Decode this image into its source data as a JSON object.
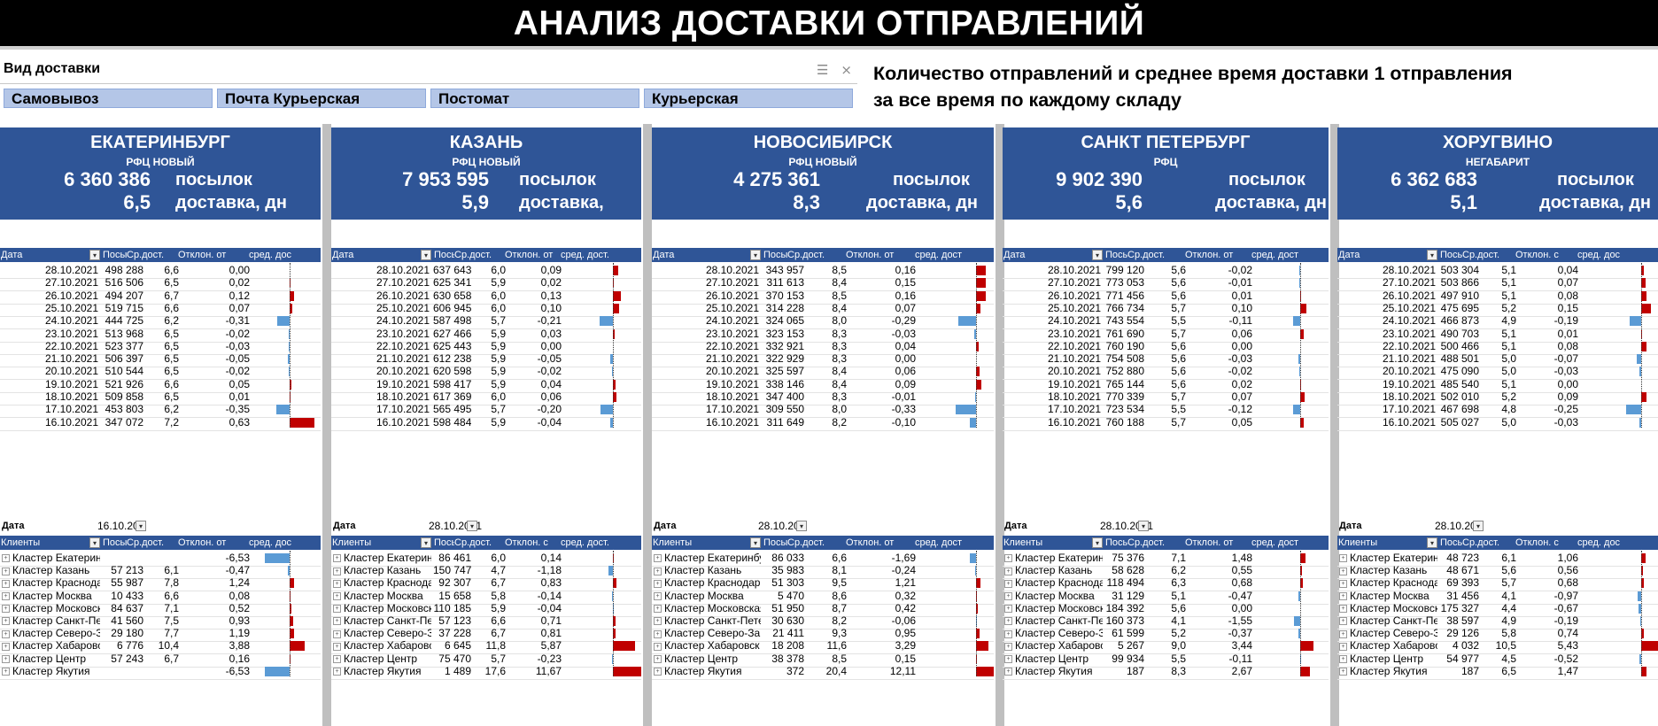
{
  "title": "АНАЛИЗ ДОСТАВКИ ОТПРАВЛЕНИЙ",
  "slicer": {
    "label": "Вид доставки",
    "buttons": [
      "Самовывоз",
      "Почта Курьерская",
      "Постомат",
      "Курьерская"
    ]
  },
  "note": {
    "line1": "Количество отправлений и  среднее время доставки 1 отправления",
    "line2": "за все время по каждому складу"
  },
  "colors": {
    "header_blue": "#2f5597",
    "bar_negative": "#5b9bd5",
    "bar_positive": "#c00000",
    "slicer_button": "#b4c6e7"
  },
  "panels": [
    {
      "city": "ЕКАТЕРИНБУРГ",
      "type": "РФЦ НОВЫЙ",
      "total": "6 360 386",
      "avg": "6,5",
      "lbl_parcels": "посылок",
      "lbl_delivery": "доставка, дн",
      "date_headers": [
        "Дата",
        "Посылки",
        "Ср.дост.",
        "Отклон. от",
        "сред. дос"
      ],
      "dates": [
        [
          "28.10.2021",
          "498 288",
          "6,6",
          "0,00"
        ],
        [
          "27.10.2021",
          "516 506",
          "6,5",
          "0,02"
        ],
        [
          "26.10.2021",
          "494 207",
          "6,7",
          "0,12"
        ],
        [
          "25.10.2021",
          "519 715",
          "6,6",
          "0,07"
        ],
        [
          "24.10.2021",
          "444 725",
          "6,2",
          "-0,31"
        ],
        [
          "23.10.2021",
          "513 968",
          "6,5",
          "-0,02"
        ],
        [
          "22.10.2021",
          "523 377",
          "6,5",
          "-0,03"
        ],
        [
          "21.10.2021",
          "506 397",
          "6,5",
          "-0,05"
        ],
        [
          "20.10.2021",
          "510 544",
          "6,5",
          "-0,02"
        ],
        [
          "19.10.2021",
          "521 926",
          "6,6",
          "0,05"
        ],
        [
          "18.10.2021",
          "509 858",
          "6,5",
          "0,01"
        ],
        [
          "17.10.2021",
          "453 803",
          "6,2",
          "-0,35"
        ],
        [
          "16.10.2021",
          "347 072",
          "7,2",
          "0,63"
        ]
      ],
      "filter_label": "Дата",
      "filter_value": "16.10.20",
      "client_headers": [
        "Клиенты",
        "Посылки",
        "Ср.дост.",
        "Отклон. от",
        "сред. дос"
      ],
      "clients": [
        [
          "Кластер Екатеринбург",
          "",
          "",
          "-6,53"
        ],
        [
          "Кластер Казань",
          "57 213",
          "6,1",
          "-0,47"
        ],
        [
          "Кластер Краснодар",
          "55 987",
          "7,8",
          "1,24"
        ],
        [
          "Кластер Москва",
          "10 433",
          "6,6",
          "0,08"
        ],
        [
          "Кластер Московска",
          "84 637",
          "7,1",
          "0,52"
        ],
        [
          "Кластер Санкт-Пете",
          "41 560",
          "7,5",
          "0,93"
        ],
        [
          "Кластер Северо-Зап",
          "29 180",
          "7,7",
          "1,19"
        ],
        [
          "Кластер Хабаровск",
          "6 776",
          "10,4",
          "3,88"
        ],
        [
          "Кластер Центр",
          "57 243",
          "6,7",
          "0,16"
        ],
        [
          "Кластер Якутия",
          "",
          "",
          "-6,53"
        ]
      ]
    },
    {
      "city": "КАЗАНЬ",
      "type": "РФЦ НОВЫЙ",
      "total": "7 953 595",
      "avg": "5,9",
      "lbl_parcels": "посылок",
      "lbl_delivery": "доставка,",
      "date_headers": [
        "Дата",
        "Посылки",
        "Ср.дост.",
        "Отклон. от",
        "сред. дост."
      ],
      "dates": [
        [
          "28.10.2021",
          "637 643",
          "6,0",
          "0,09"
        ],
        [
          "27.10.2021",
          "625 341",
          "5,9",
          "0,02"
        ],
        [
          "26.10.2021",
          "630 658",
          "6,0",
          "0,13"
        ],
        [
          "25.10.2021",
          "606 945",
          "6,0",
          "0,10"
        ],
        [
          "24.10.2021",
          "587 498",
          "5,7",
          "-0,21"
        ],
        [
          "23.10.2021",
          "627 466",
          "5,9",
          "0,03"
        ],
        [
          "22.10.2021",
          "625 443",
          "5,9",
          "0,00"
        ],
        [
          "21.10.2021",
          "612 238",
          "5,9",
          "-0,05"
        ],
        [
          "20.10.2021",
          "620 598",
          "5,9",
          "-0,02"
        ],
        [
          "19.10.2021",
          "598 417",
          "5,9",
          "0,04"
        ],
        [
          "18.10.2021",
          "617 369",
          "6,0",
          "0,06"
        ],
        [
          "17.10.2021",
          "565 495",
          "5,7",
          "-0,20"
        ],
        [
          "16.10.2021",
          "598 484",
          "5,9",
          "-0,04"
        ]
      ],
      "filter_label": "Дата",
      "filter_value": "28.10.2021",
      "client_headers": [
        "Клиенты",
        "Посылки",
        "Ср.дост.",
        "Отклон. с",
        "сред. дост."
      ],
      "clients": [
        [
          "Кластер Екатеринбу",
          "86 461",
          "6,0",
          "0,14"
        ],
        [
          "Кластер Казань",
          "150 747",
          "4,7",
          "-1,18"
        ],
        [
          "Кластер Краснодар",
          "92 307",
          "6,7",
          "0,83"
        ],
        [
          "Кластер Москва",
          "15 658",
          "5,8",
          "-0,14"
        ],
        [
          "Кластер Московская",
          "110 185",
          "5,9",
          "-0,04"
        ],
        [
          "Кластер Санкт-Петер",
          "57 123",
          "6,6",
          "0,71"
        ],
        [
          "Кластер Северо-Запа",
          "37 228",
          "6,7",
          "0,81"
        ],
        [
          "Кластер Хабаровск",
          "6 645",
          "11,8",
          "5,87"
        ],
        [
          "Кластер Центр",
          "75 470",
          "5,7",
          "-0,23"
        ],
        [
          "Кластер Якутия",
          "1 489",
          "17,6",
          "11,67"
        ]
      ]
    },
    {
      "city": "НОВОСИБИРСК",
      "type": "РФЦ НОВЫЙ",
      "total": "4 275 361",
      "avg": "8,3",
      "lbl_parcels": "посылок",
      "lbl_delivery": "доставка, дн",
      "date_headers": [
        "Дата",
        "Посылки",
        "Ср.дост.",
        "Отклон. от",
        "сред. дост"
      ],
      "dates": [
        [
          "28.10.2021",
          "343 957",
          "8,5",
          "0,16"
        ],
        [
          "27.10.2021",
          "311 613",
          "8,4",
          "0,15"
        ],
        [
          "26.10.2021",
          "370 153",
          "8,5",
          "0,16"
        ],
        [
          "25.10.2021",
          "314 228",
          "8,4",
          "0,07"
        ],
        [
          "24.10.2021",
          "324 065",
          "8,0",
          "-0,29"
        ],
        [
          "23.10.2021",
          "323 153",
          "8,3",
          "-0,03"
        ],
        [
          "22.10.2021",
          "332 921",
          "8,3",
          "0,04"
        ],
        [
          "21.10.2021",
          "322 929",
          "8,3",
          "0,00"
        ],
        [
          "20.10.2021",
          "325 597",
          "8,4",
          "0,06"
        ],
        [
          "19.10.2021",
          "338 146",
          "8,4",
          "0,09"
        ],
        [
          "18.10.2021",
          "347 400",
          "8,3",
          "-0,01"
        ],
        [
          "17.10.2021",
          "309 550",
          "8,0",
          "-0,33"
        ],
        [
          "16.10.2021",
          "311 649",
          "8,2",
          "-0,10"
        ]
      ],
      "filter_label": "Дата",
      "filter_value": "28.10.20",
      "client_headers": [
        "Клиенты",
        "Посылки",
        "Ср.дост.",
        "Отклон. от",
        "сред. дост"
      ],
      "clients": [
        [
          "Кластер Екатеринбу",
          "86 033",
          "6,6",
          "-1,69"
        ],
        [
          "Кластер Казань",
          "35 983",
          "8,1",
          "-0,24"
        ],
        [
          "Кластер Краснодар",
          "51 303",
          "9,5",
          "1,21"
        ],
        [
          "Кластер Москва",
          "5 470",
          "8,6",
          "0,32"
        ],
        [
          "Кластер Московская",
          "51 950",
          "8,7",
          "0,42"
        ],
        [
          "Кластер Санкт-Петер",
          "30 630",
          "8,2",
          "-0,06"
        ],
        [
          "Кластер Северо-Запа",
          "21 411",
          "9,3",
          "0,95"
        ],
        [
          "Кластер Хабаровск",
          "18 208",
          "11,6",
          "3,29"
        ],
        [
          "Кластер Центр",
          "38 378",
          "8,5",
          "0,15"
        ],
        [
          "Кластер Якутия",
          "372",
          "20,4",
          "12,11"
        ]
      ]
    },
    {
      "city": "САНКТ ПЕТЕРБУРГ",
      "type": "РФЦ",
      "total": "9 902 390",
      "avg": "5,6",
      "lbl_parcels": "посылок",
      "lbl_delivery": "доставка, дн",
      "date_headers": [
        "Дата",
        "Посылки",
        "Ср.дост.",
        "Отклон. от",
        "сред. дост"
      ],
      "dates": [
        [
          "28.10.2021",
          "799 120",
          "5,6",
          "-0,02"
        ],
        [
          "27.10.2021",
          "773 053",
          "5,6",
          "-0,01"
        ],
        [
          "26.10.2021",
          "771 456",
          "5,6",
          "0,01"
        ],
        [
          "25.10.2021",
          "766 734",
          "5,7",
          "0,10"
        ],
        [
          "24.10.2021",
          "743 554",
          "5,5",
          "-0,11"
        ],
        [
          "23.10.2021",
          "761 690",
          "5,7",
          "0,06"
        ],
        [
          "22.10.2021",
          "760 190",
          "5,6",
          "0,00"
        ],
        [
          "21.10.2021",
          "754 508",
          "5,6",
          "-0,03"
        ],
        [
          "20.10.2021",
          "752 880",
          "5,6",
          "-0,02"
        ],
        [
          "19.10.2021",
          "765 144",
          "5,6",
          "0,02"
        ],
        [
          "18.10.2021",
          "770 339",
          "5,7",
          "0,07"
        ],
        [
          "17.10.2021",
          "723 534",
          "5,5",
          "-0,12"
        ],
        [
          "16.10.2021",
          "760 188",
          "5,7",
          "0,05"
        ]
      ],
      "filter_label": "Дата",
      "filter_value": "28.10.2021",
      "client_headers": [
        "Клиенты",
        "Посылки",
        "Ср.дост.",
        "Отклон. от",
        "сред. дост"
      ],
      "clients": [
        [
          "Кластер Екатеринбу",
          "75 376",
          "7,1",
          "1,48"
        ],
        [
          "Кластер Казань",
          "58 628",
          "6,2",
          "0,55"
        ],
        [
          "Кластер Краснодар",
          "118 494",
          "6,3",
          "0,68"
        ],
        [
          "Кластер Москва",
          "31 129",
          "5,1",
          "-0,47"
        ],
        [
          "Кластер Московская",
          "184 392",
          "5,6",
          "0,00"
        ],
        [
          "Кластер Санкт-Петерб",
          "160 373",
          "4,1",
          "-1,55"
        ],
        [
          "Кластер Северо-Запа",
          "61 599",
          "5,2",
          "-0,37"
        ],
        [
          "Кластер Хабаровск",
          "5 267",
          "9,0",
          "3,44"
        ],
        [
          "Кластер Центр",
          "99 934",
          "5,5",
          "-0,11"
        ],
        [
          "Кластер Якутия",
          "187",
          "8,3",
          "2,67"
        ]
      ]
    },
    {
      "city": "ХОРУГВИНО",
      "type": "НЕГАБАРИТ",
      "total": "6 362 683",
      "avg": "5,1",
      "lbl_parcels": "посылок",
      "lbl_delivery": "доставка, дн",
      "date_headers": [
        "Дата",
        "Посылки",
        "Ср.дост.",
        "Отклон. с",
        "сред. дос"
      ],
      "dates": [
        [
          "28.10.2021",
          "503 304",
          "5,1",
          "0,04"
        ],
        [
          "27.10.2021",
          "503 866",
          "5,1",
          "0,07"
        ],
        [
          "26.10.2021",
          "497 910",
          "5,1",
          "0,08"
        ],
        [
          "25.10.2021",
          "475 695",
          "5,2",
          "0,15"
        ],
        [
          "24.10.2021",
          "466 873",
          "4,9",
          "-0,19"
        ],
        [
          "23.10.2021",
          "490 703",
          "5,1",
          "0,01"
        ],
        [
          "22.10.2021",
          "500 466",
          "5,1",
          "0,08"
        ],
        [
          "21.10.2021",
          "488 501",
          "5,0",
          "-0,07"
        ],
        [
          "20.10.2021",
          "475 090",
          "5,0",
          "-0,03"
        ],
        [
          "19.10.2021",
          "485 540",
          "5,1",
          "0,00"
        ],
        [
          "18.10.2021",
          "502 010",
          "5,2",
          "0,09"
        ],
        [
          "17.10.2021",
          "467 698",
          "4,8",
          "-0,25"
        ],
        [
          "16.10.2021",
          "505 027",
          "5,0",
          "-0,03"
        ]
      ],
      "filter_label": "Дата",
      "filter_value": "28.10.20",
      "client_headers": [
        "Клиенты",
        "Посылки",
        "Ср.дост.",
        "Отклон. с",
        "сред. дос"
      ],
      "clients": [
        [
          "Кластер Екатеринбу",
          "48 723",
          "6,1",
          "1,06"
        ],
        [
          "Кластер Казань",
          "48 671",
          "5,6",
          "0,56"
        ],
        [
          "Кластер Краснодар",
          "69 393",
          "5,7",
          "0,68"
        ],
        [
          "Кластер Москва",
          "31 456",
          "4,1",
          "-0,97"
        ],
        [
          "Кластер Московская с",
          "175 327",
          "4,4",
          "-0,67"
        ],
        [
          "Кластер Санкт-Петерб",
          "38 597",
          "4,9",
          "-0,19"
        ],
        [
          "Кластер Северо-Запад",
          "29 126",
          "5,8",
          "0,74"
        ],
        [
          "Кластер Хабаровск",
          "4 032",
          "10,5",
          "5,43"
        ],
        [
          "Кластер Центр",
          "54 977",
          "4,5",
          "-0,52"
        ],
        [
          "Кластер Якутия",
          "187",
          "6,5",
          "1,47"
        ]
      ]
    }
  ]
}
